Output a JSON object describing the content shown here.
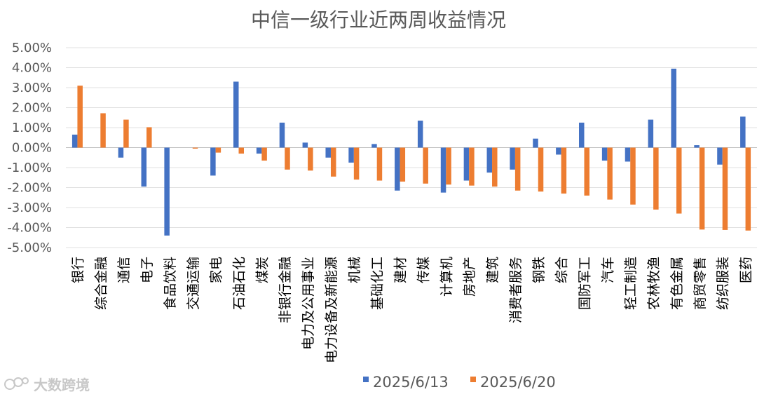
{
  "chart_data": {
    "type": "bar",
    "title": "中信一级行业近两周收益情况",
    "xlabel": "",
    "ylabel": "",
    "ylim": [
      -5,
      5
    ],
    "y_ticks": [
      "5.00%",
      "4.00%",
      "3.00%",
      "2.00%",
      "1.00%",
      "0.00%",
      "-1.00%",
      "-2.00%",
      "-3.00%",
      "-4.00%",
      "-5.00%"
    ],
    "grid": true,
    "legend_position": "bottom",
    "categories": [
      "银行",
      "综合金融",
      "通信",
      "电子",
      "食品饮料",
      "交通运输",
      "家电",
      "石油石化",
      "煤炭",
      "非银行金融",
      "电力及公用事业",
      "电力设备及新能源",
      "机械",
      "基础化工",
      "建材",
      "传媒",
      "计算机",
      "房地产",
      "建筑",
      "消费者服务",
      "钢铁",
      "综合",
      "国防军工",
      "汽车",
      "轻工制造",
      "农林牧渔",
      "有色金属",
      "商贸零售",
      "纺织服装",
      "医药"
    ],
    "series": [
      {
        "name": "2025/6/13",
        "color": "#4472C4",
        "values": [
          0.65,
          0.0,
          -0.5,
          -1.95,
          -4.4,
          0.0,
          -1.4,
          3.3,
          -0.3,
          1.25,
          0.25,
          -0.5,
          -0.75,
          0.18,
          -2.15,
          1.35,
          -2.25,
          -1.65,
          -1.25,
          -1.1,
          0.45,
          -0.35,
          1.25,
          -0.65,
          -0.7,
          1.4,
          3.95,
          0.12,
          -0.85,
          1.55
        ]
      },
      {
        "name": "2025/6/20",
        "color": "#ED7D31",
        "values": [
          3.1,
          1.72,
          1.4,
          1.02,
          0.0,
          -0.05,
          -0.25,
          -0.3,
          -0.65,
          -1.1,
          -1.15,
          -1.45,
          -1.6,
          -1.65,
          -1.7,
          -1.8,
          -1.85,
          -1.9,
          -1.95,
          -2.15,
          -2.2,
          -2.3,
          -2.4,
          -2.6,
          -2.85,
          -3.1,
          -3.3,
          -4.1,
          -4.12,
          -4.15
        ]
      }
    ]
  },
  "watermark": {
    "text": "大数跨境",
    "icon": "logo-icon"
  }
}
